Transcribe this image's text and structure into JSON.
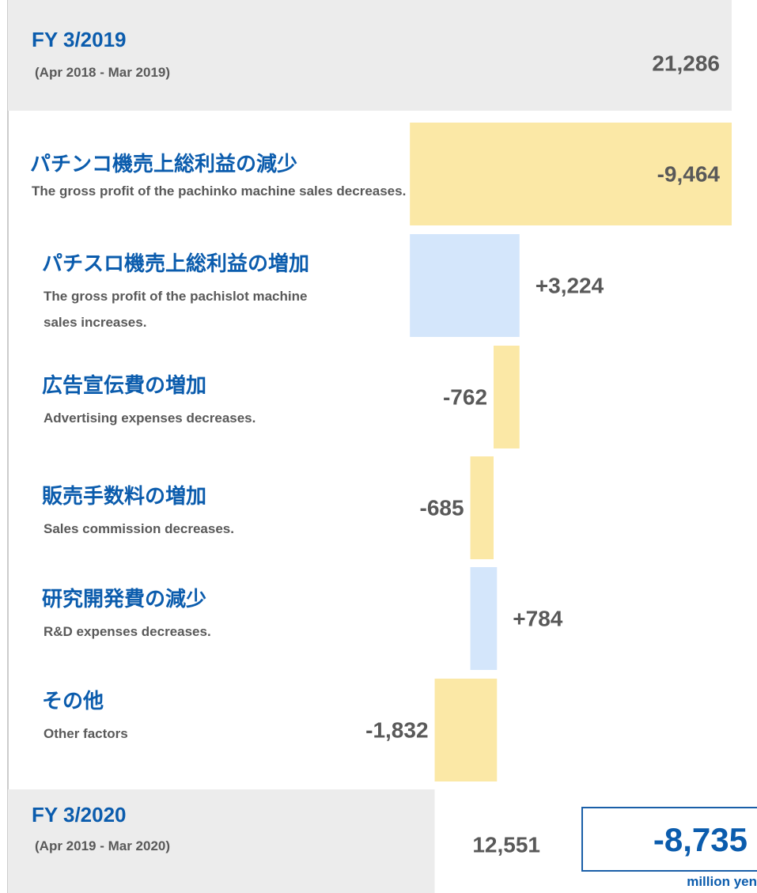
{
  "chart_data": {
    "type": "waterfall",
    "start": {
      "label": "FY 3/2019",
      "sublabel": "(Apr 2018 - Mar 2019)",
      "value": 21286,
      "value_label": "21,286"
    },
    "steps": {
      "categories": [
        "パチンコ機売上総利益の減少",
        "パチスロ機売上総利益の増加",
        "広告宣伝費の増加",
        "販売手数料の増加",
        "研究開発費の減少",
        "その他"
      ],
      "descriptions": [
        "The gross profit of the pachinko machine sales decreases.",
        "The gross profit of the pachislot machine sales increases.",
        "Advertising expenses decreases.",
        "Sales commission decreases.",
        "R&D expenses decreases.",
        "Other factors"
      ],
      "values": [
        -9464,
        3224,
        -762,
        -685,
        784,
        -1832
      ],
      "value_labels": [
        "-9,464",
        "+3,224",
        "-762",
        "-685",
        "+784",
        "-1,832"
      ]
    },
    "end": {
      "label": "FY 3/2020",
      "sublabel": "(Apr 2019 - Mar 2020)",
      "value": 12551,
      "value_label": "12,551"
    },
    "change": {
      "value": -8735,
      "label": "-8,735"
    },
    "unit": "million yen",
    "colors": {
      "total": "#ececec",
      "decrease": "#fbe8a6",
      "increase": "#d4e6fb",
      "title": "#0b5cad",
      "text": "#595959"
    }
  }
}
